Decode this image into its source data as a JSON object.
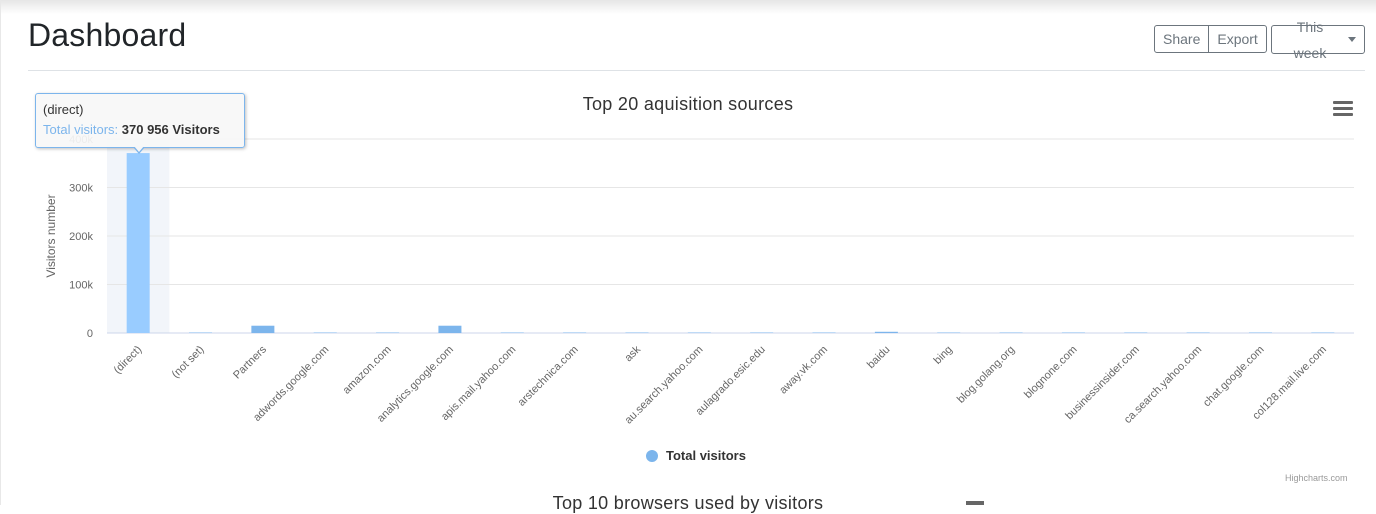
{
  "header": {
    "title": "Dashboard",
    "share_label": "Share",
    "export_label": "Export",
    "period_label": "This week"
  },
  "chart_data": {
    "type": "bar",
    "title": "Top 20 aquisition sources",
    "xlabel": "",
    "ylabel": "Visitors number",
    "ylim": [
      0,
      400000
    ],
    "yticks": [
      "0",
      "100k",
      "200k",
      "300k",
      "400k"
    ],
    "categories": [
      "(direct)",
      "(not set)",
      "Partners",
      "adwords.google.com",
      "amazon.com",
      "analytics.google.com",
      "apis.mail.yahoo.com",
      "arstechnica.com",
      "ask",
      "au.search.yahoo.com",
      "aulagrado.esic.edu",
      "away.vk.com",
      "baidu",
      "bing",
      "blog.golang.org",
      "blognone.com",
      "businessinsider.com",
      "ca.search.yahoo.com",
      "chat.google.com",
      "col128.mail.live.com"
    ],
    "series": [
      {
        "name": "Total visitors",
        "color": "#7cb5ec",
        "values": [
          370956,
          300,
          15000,
          200,
          200,
          15000,
          100,
          100,
          200,
          100,
          100,
          100,
          2500,
          600,
          100,
          100,
          100,
          100,
          100,
          100
        ]
      }
    ],
    "grid": true,
    "legend": "bottom-center",
    "highlight_color": "#99ccff",
    "credits": "Highcharts.com"
  },
  "tooltip": {
    "category": "(direct)",
    "series_label": "Total visitors:",
    "value_text": "370 956 Visitors"
  },
  "next_chart": {
    "title": "Top 10 browsers used by visitors"
  }
}
